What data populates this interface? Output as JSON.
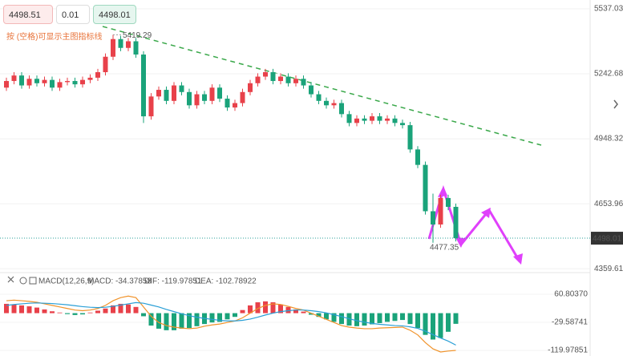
{
  "order_panel": {
    "sell": "4498.51",
    "lot": "0.01",
    "buy": "4498.01",
    "hint": "按 (空格)可显示主图指标线"
  },
  "chart_data": {
    "type": "candlestick",
    "up_color": "#e8414a",
    "down_color": "#1aa37a",
    "ylim": [
      4342,
      5577
    ],
    "yticks": [
      5537.03,
      5242.68,
      4948.32,
      4653.96,
      4359.61
    ],
    "grid": true,
    "last_price": 4498.01,
    "candles": [
      [
        5180,
        5225,
        5165,
        5210
      ],
      [
        5210,
        5250,
        5195,
        5235
      ],
      [
        5235,
        5250,
        5175,
        5190
      ],
      [
        5190,
        5235,
        5175,
        5220
      ],
      [
        5220,
        5235,
        5185,
        5200
      ],
      [
        5200,
        5230,
        5185,
        5215
      ],
      [
        5215,
        5230,
        5165,
        5180
      ],
      [
        5180,
        5220,
        5165,
        5205
      ],
      [
        5205,
        5225,
        5190,
        5210
      ],
      [
        5210,
        5225,
        5180,
        5195
      ],
      [
        5195,
        5230,
        5180,
        5215
      ],
      [
        5215,
        5240,
        5200,
        5225
      ],
      [
        5225,
        5265,
        5210,
        5250
      ],
      [
        5250,
        5335,
        5235,
        5320
      ],
      [
        5320,
        5419.29,
        5305,
        5400
      ],
      [
        5400,
        5415,
        5345,
        5360
      ],
      [
        5360,
        5405,
        5345,
        5390
      ],
      [
        5390,
        5405,
        5315,
        5330
      ],
      [
        5330,
        5345,
        5020,
        5050
      ],
      [
        5050,
        5155,
        5035,
        5140
      ],
      [
        5140,
        5185,
        5125,
        5170
      ],
      [
        5170,
        5185,
        5105,
        5120
      ],
      [
        5120,
        5205,
        5105,
        5190
      ],
      [
        5190,
        5205,
        5145,
        5160
      ],
      [
        5160,
        5175,
        5085,
        5100
      ],
      [
        5100,
        5165,
        5085,
        5150
      ],
      [
        5150,
        5165,
        5105,
        5120
      ],
      [
        5120,
        5195,
        5105,
        5180
      ],
      [
        5180,
        5195,
        5115,
        5130
      ],
      [
        5130,
        5145,
        5075,
        5090
      ],
      [
        5090,
        5125,
        5075,
        5110
      ],
      [
        5110,
        5175,
        5095,
        5160
      ],
      [
        5160,
        5215,
        5145,
        5200
      ],
      [
        5200,
        5245,
        5185,
        5230
      ],
      [
        5230,
        5265,
        5215,
        5250
      ],
      [
        5250,
        5265,
        5195,
        5210
      ],
      [
        5210,
        5245,
        5195,
        5230
      ],
      [
        5230,
        5245,
        5185,
        5200
      ],
      [
        5200,
        5235,
        5185,
        5220
      ],
      [
        5220,
        5235,
        5175,
        5190
      ],
      [
        5190,
        5205,
        5135,
        5150
      ],
      [
        5150,
        5165,
        5105,
        5120
      ],
      [
        5120,
        5135,
        5085,
        5100
      ],
      [
        5100,
        5125,
        5085,
        5110
      ],
      [
        5110,
        5125,
        5045,
        5060
      ],
      [
        5060,
        5075,
        5005,
        5020
      ],
      [
        5020,
        5055,
        5005,
        5040
      ],
      [
        5040,
        5055,
        5015,
        5030
      ],
      [
        5030,
        5065,
        5015,
        5050
      ],
      [
        5050,
        5065,
        5015,
        5030
      ],
      [
        5030,
        5055,
        5015,
        5040
      ],
      [
        5040,
        5055,
        5005,
        5020
      ],
      [
        5020,
        5035,
        4995,
        5010
      ],
      [
        5010,
        5025,
        4885,
        4900
      ],
      [
        4900,
        4915,
        4815,
        4830
      ],
      [
        4830,
        4845,
        4605,
        4620
      ],
      [
        4620,
        4700,
        4477.35,
        4560
      ],
      [
        4560,
        4695,
        4545,
        4680
      ],
      [
        4680,
        4695,
        4625,
        4640
      ],
      [
        4640,
        4655,
        4483,
        4498.01
      ]
    ],
    "macd": {
      "title": "MACD(12,26,9)",
      "legend": {
        "macd": "MACD: -34.37858",
        "dif": "DIF: -119.97851",
        "dea": "DEA: -102.78922"
      },
      "ylim": [
        -138,
        130.6
      ],
      "yticks": [
        {
          "value": 60.8037,
          "label": "60.80370"
        },
        -29.58741,
        -119.97851
      ],
      "dif_color": "#f0932b",
      "dea_color": "#2a9fd6",
      "histogram": [
        30,
        28,
        25,
        22,
        18,
        12,
        6,
        2,
        -3,
        -6,
        -4,
        2,
        8,
        15,
        25,
        30,
        28,
        20,
        -10,
        -40,
        -50,
        -55,
        -55,
        -50,
        -48,
        -42,
        -35,
        -30,
        -28,
        -20,
        -12,
        10,
        25,
        35,
        38,
        35,
        28,
        20,
        12,
        5,
        -5,
        -12,
        -20,
        -28,
        -35,
        -40,
        -42,
        -40,
        -36,
        -32,
        -28,
        -25,
        -22,
        -35,
        -48,
        -70,
        -85,
        -80,
        -60,
        -34.37858
      ],
      "dif": [
        40,
        42,
        40,
        38,
        35,
        30,
        25,
        20,
        15,
        10,
        8,
        10,
        15,
        25,
        40,
        50,
        55,
        50,
        20,
        -10,
        -30,
        -40,
        -45,
        -48,
        -50,
        -48,
        -42,
        -38,
        -35,
        -30,
        -25,
        -15,
        0,
        15,
        25,
        30,
        28,
        22,
        15,
        10,
        0,
        -10,
        -20,
        -30,
        -40,
        -45,
        -48,
        -50,
        -50,
        -48,
        -47,
        -46,
        -45,
        -55,
        -70,
        -95,
        -115,
        -125,
        -122,
        -119.97851
      ],
      "dea": [
        25,
        28,
        30,
        32,
        33,
        32,
        31,
        29,
        27,
        24,
        21,
        19,
        18,
        19,
        22,
        26,
        30,
        34,
        32,
        26,
        20,
        12,
        5,
        -2,
        -8,
        -13,
        -17,
        -20,
        -23,
        -25,
        -25,
        -23,
        -19,
        -13,
        -6,
        0,
        5,
        8,
        10,
        10,
        8,
        5,
        1,
        -5,
        -11,
        -18,
        -24,
        -29,
        -33,
        -36,
        -38,
        -40,
        -41,
        -44,
        -49,
        -58,
        -69,
        -80,
        -90,
        -102.78922
      ]
    }
  }
}
